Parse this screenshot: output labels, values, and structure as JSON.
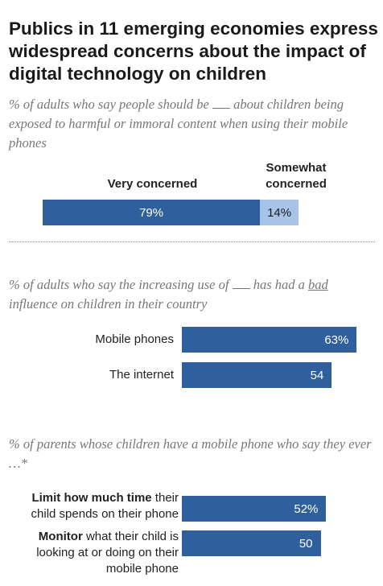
{
  "title": "Publics in 11 emerging economies express widespread concerns about the impact of digital technology on children",
  "section1": {
    "sub_pre": "% of adults who say people should be",
    "sub_post": "about children being exposed to harmful or immoral content when using their mobile phones"
  },
  "section2": {
    "sub_pre": "% of adults who say the increasing use of",
    "sub_mid": "has had a",
    "sub_bad": "bad",
    "sub_post": "influence on children in their country"
  },
  "section3": {
    "sub": "% of parents whose children have a mobile phone who say they ever …*"
  },
  "chart_data": [
    {
      "type": "bar",
      "stacked": true,
      "orientation": "horizontal",
      "series": [
        {
          "name": "Very concerned",
          "value": 79,
          "label": "79%",
          "color": "#2f5f9c"
        },
        {
          "name": "Somewhat concerned",
          "value": 14,
          "label": "14%",
          "color": "#a7c3e8"
        }
      ],
      "xlim": [
        0,
        100
      ]
    },
    {
      "type": "bar",
      "orientation": "horizontal",
      "categories": [
        "Mobile phones",
        "The internet"
      ],
      "values": [
        63,
        54
      ],
      "value_labels": [
        "63%",
        "54"
      ],
      "color": "#2f5f9c",
      "xlim": [
        0,
        100
      ]
    },
    {
      "type": "bar",
      "orientation": "horizontal",
      "categories": [
        {
          "bold": "Limit how much time",
          "rest": " their child spends on their phone"
        },
        {
          "bold": "Monitor",
          "rest": " what their child is looking at or doing on their mobile phone"
        }
      ],
      "values": [
        52,
        50
      ],
      "value_labels": [
        "52%",
        "50"
      ],
      "color": "#2f5f9c",
      "xlim": [
        0,
        100
      ]
    }
  ]
}
